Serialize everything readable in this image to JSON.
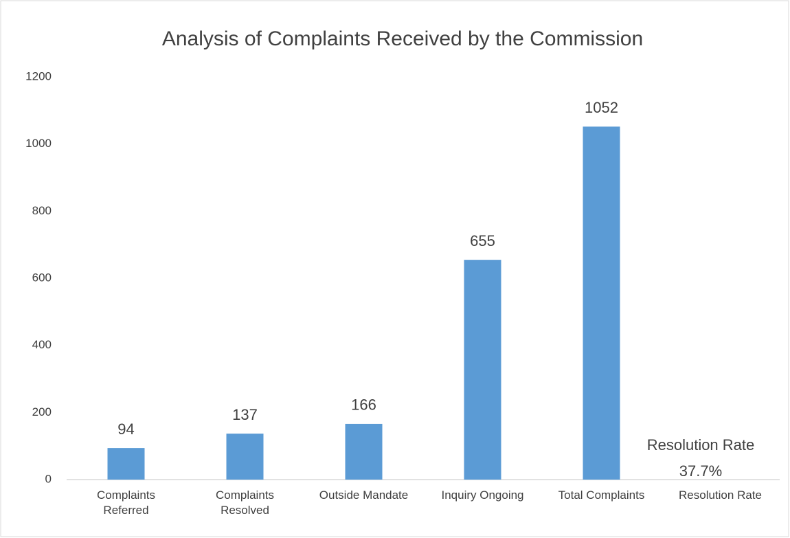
{
  "chart_data": {
    "type": "bar",
    "title": "Analysis of Complaints Received by the Commission",
    "categories": [
      "Complaints Referred",
      "Complaints Resolved",
      "Outside Mandate",
      "Inquiry Ongoing",
      "Total Complaints",
      "Resolution Rate"
    ],
    "values": [
      94,
      137,
      166,
      655,
      1052,
      null
    ],
    "color": "#5b9bd5",
    "ylim": [
      0,
      1200
    ],
    "yticks": [
      0,
      200,
      400,
      600,
      800,
      1000,
      1200
    ],
    "grid": false,
    "annotations": [
      "Resolution Rate",
      "37.7%"
    ]
  }
}
